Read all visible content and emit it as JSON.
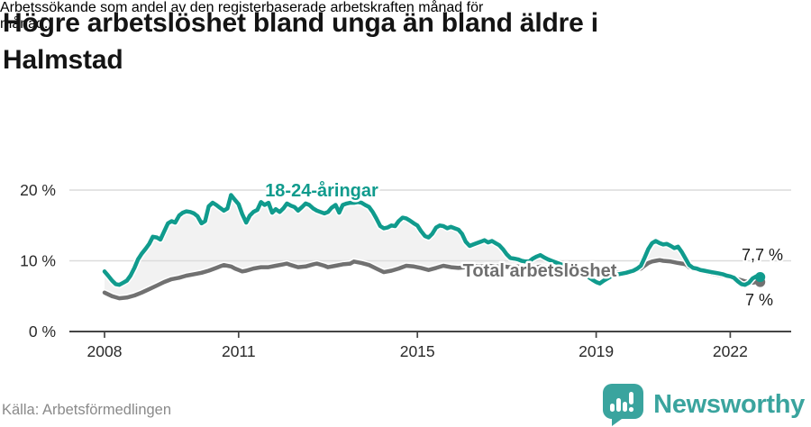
{
  "header": {
    "title_lines": [
      "Högre arbetslöshet bland unga än bland äldre i",
      "Halmstad"
    ],
    "subtitle_lines": [
      "Arbetssökande som andel av den registerbaserade arbetskraften månad för",
      "månad."
    ]
  },
  "footer": {
    "source": "Källa: Arbetsförmedlingen",
    "brand": "Newsworthy"
  },
  "colors": {
    "youth_line": "#109b8d",
    "total_line": "#717171",
    "between_fill": "#f2f2f2",
    "gridline": "#dcdcdc",
    "axis": "#454545",
    "brand_teal": "#3aa49e"
  },
  "chart_data": {
    "type": "line",
    "title": "Högre arbetslöshet bland unga än bland äldre i Halmstad",
    "subtitle": "Arbetssökande som andel av den registerbaserade arbetskraften månad för månad.",
    "xlabel": "",
    "ylabel": "",
    "unit": "%",
    "xlim": [
      2007.2,
      2023.4
    ],
    "ylim": [
      0,
      22
    ],
    "grid": "horizontal",
    "legend": "inline-labels",
    "x_ticks": [
      2008,
      2011,
      2015,
      2019,
      2022
    ],
    "x_tick_labels": [
      "2008",
      "2011",
      "2015",
      "2019",
      "2022"
    ],
    "y_ticks": [
      0,
      10,
      20
    ],
    "y_tick_labels": [
      "0 %",
      "10 %",
      "20 %"
    ],
    "series": [
      {
        "name": "18-24-åringar",
        "color": "#109b8d",
        "end_label": "7,7 %",
        "end_value": 7.7,
        "points": [
          [
            2008.0,
            8.5
          ],
          [
            2008.08,
            7.9
          ],
          [
            2008.17,
            7.2
          ],
          [
            2008.25,
            6.7
          ],
          [
            2008.33,
            6.6
          ],
          [
            2008.42,
            6.9
          ],
          [
            2008.5,
            7.2
          ],
          [
            2008.58,
            7.9
          ],
          [
            2008.67,
            9.0
          ],
          [
            2008.75,
            10.2
          ],
          [
            2008.83,
            11.0
          ],
          [
            2008.92,
            11.7
          ],
          [
            2009.0,
            12.4
          ],
          [
            2009.08,
            13.4
          ],
          [
            2009.17,
            13.3
          ],
          [
            2009.25,
            13.0
          ],
          [
            2009.33,
            14.1
          ],
          [
            2009.42,
            15.3
          ],
          [
            2009.5,
            15.6
          ],
          [
            2009.58,
            15.4
          ],
          [
            2009.67,
            16.4
          ],
          [
            2009.75,
            16.8
          ],
          [
            2009.83,
            17.0
          ],
          [
            2009.92,
            16.9
          ],
          [
            2010.0,
            16.7
          ],
          [
            2010.08,
            16.3
          ],
          [
            2010.17,
            15.3
          ],
          [
            2010.25,
            15.6
          ],
          [
            2010.33,
            17.7
          ],
          [
            2010.42,
            18.2
          ],
          [
            2010.5,
            17.9
          ],
          [
            2010.58,
            17.5
          ],
          [
            2010.67,
            17.1
          ],
          [
            2010.75,
            17.4
          ],
          [
            2010.83,
            19.3
          ],
          [
            2010.92,
            18.6
          ],
          [
            2011.0,
            18.0
          ],
          [
            2011.08,
            16.6
          ],
          [
            2011.17,
            15.4
          ],
          [
            2011.25,
            16.4
          ],
          [
            2011.33,
            16.9
          ],
          [
            2011.42,
            17.2
          ],
          [
            2011.5,
            18.3
          ],
          [
            2011.58,
            17.9
          ],
          [
            2011.67,
            18.2
          ],
          [
            2011.75,
            16.8
          ],
          [
            2011.83,
            17.3
          ],
          [
            2011.92,
            16.9
          ],
          [
            2012.0,
            17.4
          ],
          [
            2012.08,
            18.1
          ],
          [
            2012.17,
            17.8
          ],
          [
            2012.25,
            17.6
          ],
          [
            2012.33,
            17.1
          ],
          [
            2012.42,
            17.6
          ],
          [
            2012.5,
            18.1
          ],
          [
            2012.58,
            17.9
          ],
          [
            2012.67,
            17.4
          ],
          [
            2012.75,
            17.1
          ],
          [
            2012.83,
            16.9
          ],
          [
            2012.92,
            16.7
          ],
          [
            2013.0,
            16.9
          ],
          [
            2013.08,
            17.5
          ],
          [
            2013.17,
            17.9
          ],
          [
            2013.25,
            16.8
          ],
          [
            2013.33,
            17.9
          ],
          [
            2013.42,
            18.1
          ],
          [
            2013.5,
            18.2
          ],
          [
            2013.58,
            18.2
          ],
          [
            2013.67,
            18.3
          ],
          [
            2013.75,
            18.2
          ],
          [
            2013.83,
            17.9
          ],
          [
            2013.92,
            17.6
          ],
          [
            2014.0,
            16.9
          ],
          [
            2014.08,
            16.0
          ],
          [
            2014.17,
            14.9
          ],
          [
            2014.25,
            14.6
          ],
          [
            2014.33,
            14.7
          ],
          [
            2014.42,
            15.0
          ],
          [
            2014.5,
            14.9
          ],
          [
            2014.58,
            15.6
          ],
          [
            2014.67,
            16.1
          ],
          [
            2014.75,
            16.0
          ],
          [
            2014.83,
            15.7
          ],
          [
            2014.92,
            15.3
          ],
          [
            2015.0,
            15.0
          ],
          [
            2015.08,
            14.2
          ],
          [
            2015.17,
            13.5
          ],
          [
            2015.25,
            13.3
          ],
          [
            2015.33,
            13.8
          ],
          [
            2015.42,
            14.7
          ],
          [
            2015.5,
            15.0
          ],
          [
            2015.58,
            14.9
          ],
          [
            2015.67,
            14.6
          ],
          [
            2015.75,
            14.8
          ],
          [
            2015.83,
            14.6
          ],
          [
            2015.92,
            14.4
          ],
          [
            2016.0,
            13.8
          ],
          [
            2016.08,
            12.7
          ],
          [
            2016.17,
            12.1
          ],
          [
            2016.25,
            12.3
          ],
          [
            2016.33,
            12.5
          ],
          [
            2016.42,
            12.7
          ],
          [
            2016.5,
            12.9
          ],
          [
            2016.58,
            12.6
          ],
          [
            2016.67,
            12.8
          ],
          [
            2016.75,
            12.5
          ],
          [
            2016.83,
            12.2
          ],
          [
            2016.92,
            11.6
          ],
          [
            2017.0,
            10.9
          ],
          [
            2017.08,
            10.4
          ],
          [
            2017.17,
            10.3
          ],
          [
            2017.25,
            10.2
          ],
          [
            2017.33,
            10.0
          ],
          [
            2017.42,
            9.9
          ],
          [
            2017.5,
            9.9
          ],
          [
            2017.58,
            10.3
          ],
          [
            2017.67,
            10.6
          ],
          [
            2017.75,
            10.8
          ],
          [
            2017.83,
            10.5
          ],
          [
            2017.92,
            10.2
          ],
          [
            2018.0,
            10.0
          ],
          [
            2018.17,
            9.6
          ],
          [
            2018.33,
            9.2
          ],
          [
            2018.5,
            8.8
          ],
          [
            2018.67,
            8.3
          ],
          [
            2018.83,
            7.7
          ],
          [
            2018.92,
            7.3
          ],
          [
            2019.0,
            7.0
          ],
          [
            2019.08,
            6.8
          ],
          [
            2019.17,
            7.2
          ],
          [
            2019.33,
            7.8
          ],
          [
            2019.5,
            8.1
          ],
          [
            2019.67,
            8.3
          ],
          [
            2019.83,
            8.6
          ],
          [
            2019.92,
            8.9
          ],
          [
            2020.0,
            9.3
          ],
          [
            2020.08,
            10.4
          ],
          [
            2020.17,
            11.7
          ],
          [
            2020.25,
            12.5
          ],
          [
            2020.33,
            12.8
          ],
          [
            2020.42,
            12.5
          ],
          [
            2020.5,
            12.3
          ],
          [
            2020.58,
            12.4
          ],
          [
            2020.67,
            12.1
          ],
          [
            2020.75,
            11.8
          ],
          [
            2020.83,
            12.0
          ],
          [
            2020.92,
            11.2
          ],
          [
            2021.0,
            10.3
          ],
          [
            2021.08,
            9.4
          ],
          [
            2021.17,
            9.0
          ],
          [
            2021.25,
            8.9
          ],
          [
            2021.33,
            8.7
          ],
          [
            2021.42,
            8.6
          ],
          [
            2021.5,
            8.5
          ],
          [
            2021.58,
            8.4
          ],
          [
            2021.67,
            8.3
          ],
          [
            2021.75,
            8.2
          ],
          [
            2021.83,
            8.1
          ],
          [
            2021.92,
            7.9
          ],
          [
            2022.0,
            7.8
          ],
          [
            2022.08,
            7.6
          ],
          [
            2022.17,
            7.1
          ],
          [
            2022.25,
            6.7
          ],
          [
            2022.33,
            6.6
          ],
          [
            2022.42,
            6.9
          ],
          [
            2022.5,
            7.5
          ],
          [
            2022.58,
            7.8
          ],
          [
            2022.67,
            7.7
          ]
        ]
      },
      {
        "name": "Total arbetslöshet",
        "color": "#717171",
        "end_label": "7 %",
        "end_value": 7.0,
        "points": [
          [
            2008.0,
            5.5
          ],
          [
            2008.17,
            5.0
          ],
          [
            2008.33,
            4.7
          ],
          [
            2008.5,
            4.8
          ],
          [
            2008.67,
            5.1
          ],
          [
            2008.83,
            5.5
          ],
          [
            2009.0,
            6.0
          ],
          [
            2009.17,
            6.5
          ],
          [
            2009.33,
            7.0
          ],
          [
            2009.5,
            7.4
          ],
          [
            2009.67,
            7.6
          ],
          [
            2009.83,
            7.9
          ],
          [
            2010.0,
            8.1
          ],
          [
            2010.17,
            8.3
          ],
          [
            2010.33,
            8.6
          ],
          [
            2010.5,
            9.0
          ],
          [
            2010.58,
            9.2
          ],
          [
            2010.67,
            9.4
          ],
          [
            2010.83,
            9.2
          ],
          [
            2010.92,
            8.9
          ],
          [
            2011.0,
            8.7
          ],
          [
            2011.08,
            8.5
          ],
          [
            2011.17,
            8.6
          ],
          [
            2011.33,
            8.9
          ],
          [
            2011.5,
            9.1
          ],
          [
            2011.67,
            9.1
          ],
          [
            2011.83,
            9.3
          ],
          [
            2012.0,
            9.5
          ],
          [
            2012.08,
            9.6
          ],
          [
            2012.17,
            9.4
          ],
          [
            2012.33,
            9.1
          ],
          [
            2012.5,
            9.2
          ],
          [
            2012.67,
            9.5
          ],
          [
            2012.75,
            9.6
          ],
          [
            2012.92,
            9.3
          ],
          [
            2013.0,
            9.1
          ],
          [
            2013.17,
            9.3
          ],
          [
            2013.33,
            9.5
          ],
          [
            2013.5,
            9.6
          ],
          [
            2013.58,
            9.9
          ],
          [
            2013.75,
            9.7
          ],
          [
            2013.92,
            9.4
          ],
          [
            2014.08,
            8.9
          ],
          [
            2014.25,
            8.4
          ],
          [
            2014.42,
            8.6
          ],
          [
            2014.58,
            8.9
          ],
          [
            2014.75,
            9.3
          ],
          [
            2014.92,
            9.2
          ],
          [
            2015.08,
            9.0
          ],
          [
            2015.25,
            8.7
          ],
          [
            2015.42,
            9.0
          ],
          [
            2015.58,
            9.3
          ],
          [
            2015.75,
            9.1
          ],
          [
            2015.92,
            9.0
          ],
          [
            2016.08,
            9.1
          ],
          [
            2016.25,
            9.3
          ],
          [
            2016.42,
            9.2
          ],
          [
            2016.58,
            9.3
          ],
          [
            2016.75,
            9.2
          ],
          [
            2016.92,
            9.2
          ],
          [
            2017.08,
            9.1
          ],
          [
            2017.25,
            9.2
          ],
          [
            2017.42,
            9.0
          ],
          [
            2017.58,
            9.0
          ],
          [
            2017.75,
            9.2
          ],
          [
            2017.92,
            9.1
          ],
          [
            2018.08,
            8.9
          ],
          [
            2018.33,
            8.7
          ],
          [
            2018.58,
            8.5
          ],
          [
            2018.83,
            8.3
          ],
          [
            2019.0,
            8.2
          ],
          [
            2019.17,
            8.2
          ],
          [
            2019.33,
            8.3
          ],
          [
            2019.5,
            8.3
          ],
          [
            2019.67,
            8.4
          ],
          [
            2019.83,
            8.6
          ],
          [
            2020.0,
            8.9
          ],
          [
            2020.08,
            9.3
          ],
          [
            2020.17,
            9.7
          ],
          [
            2020.25,
            9.9
          ],
          [
            2020.33,
            10.0
          ],
          [
            2020.42,
            10.1
          ],
          [
            2020.5,
            10.0
          ],
          [
            2020.67,
            9.9
          ],
          [
            2020.83,
            9.7
          ],
          [
            2020.92,
            9.6
          ],
          [
            2021.0,
            9.5
          ],
          [
            2021.08,
            9.1
          ],
          [
            2021.17,
            8.9
          ],
          [
            2021.33,
            8.6
          ],
          [
            2021.5,
            8.3
          ],
          [
            2021.67,
            8.1
          ],
          [
            2021.83,
            7.9
          ],
          [
            2022.0,
            7.7
          ],
          [
            2022.17,
            7.4
          ],
          [
            2022.33,
            7.1
          ],
          [
            2022.42,
            7.0
          ],
          [
            2022.5,
            6.9
          ],
          [
            2022.58,
            7.0
          ],
          [
            2022.67,
            7.0
          ]
        ]
      }
    ]
  }
}
